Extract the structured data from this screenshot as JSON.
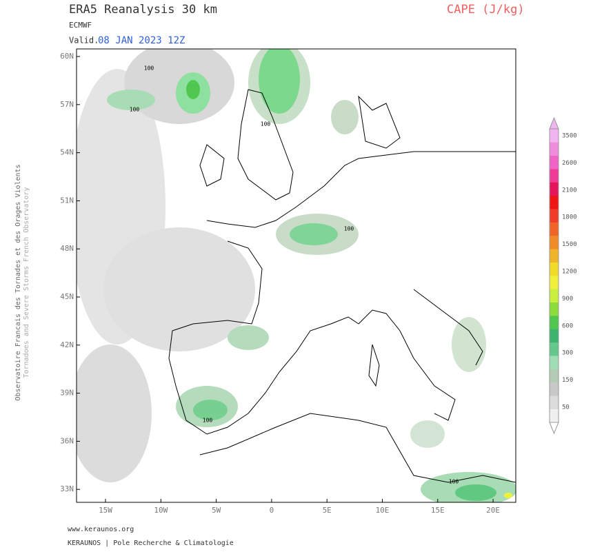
{
  "header": {
    "title": "ERA5 Reanalysis 30 km",
    "source": "ECMWF",
    "valid_prefix": "Valid.",
    "valid_time": "08 JAN 2023 12Z",
    "field": "CAPE (J/kg)"
  },
  "side": {
    "line1": "Observatoire Francais des Tornades et des Orages Violents",
    "line2": "Tornadoes and Severe Storms French Observatory"
  },
  "map": {
    "lat_labels": [
      "60N",
      "57N",
      "54N",
      "51N",
      "48N",
      "45N",
      "42N",
      "39N",
      "36N",
      "33N"
    ],
    "lon_labels": [
      "15W",
      "10W",
      "5W",
      "0",
      "5E",
      "10E",
      "15E",
      "20E"
    ],
    "contour_labels": [
      "100",
      "100",
      "100",
      "100",
      "100",
      "100"
    ]
  },
  "colorbar": {
    "labels": [
      3500,
      2600,
      2100,
      1800,
      1500,
      1200,
      900,
      600,
      300,
      150,
      50
    ]
  },
  "footer": {
    "url": "www.keraunos.org",
    "credit": "KERAUNOS | Pole Recherche & Climatologie"
  }
}
